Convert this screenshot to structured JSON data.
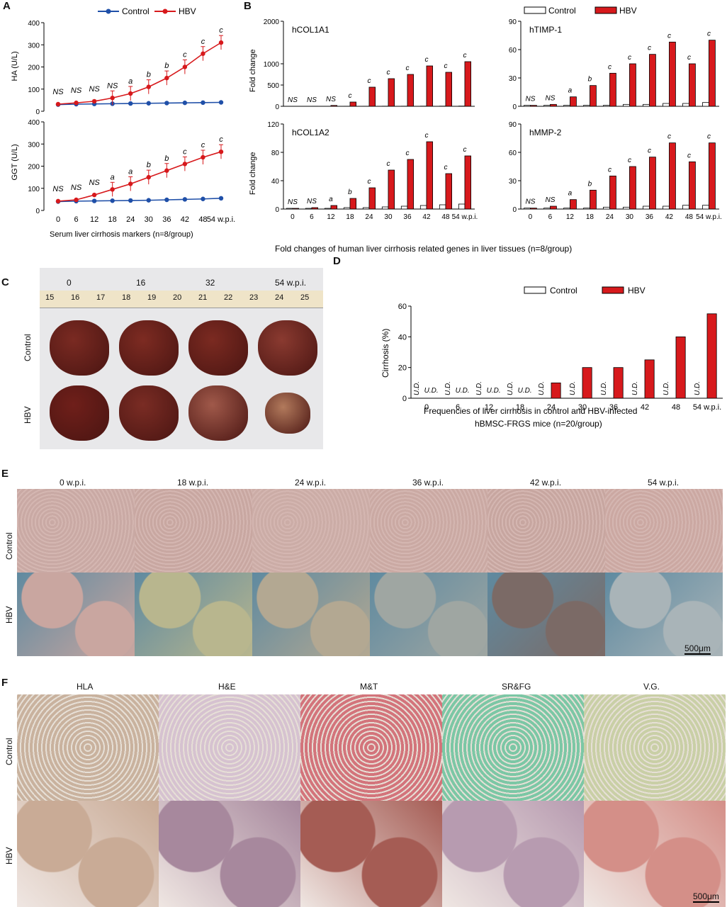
{
  "colors": {
    "control": "#1f4fa8",
    "hbv": "#d7191c",
    "bar_hbv": "#d7191c",
    "bar_control": "#ffffff"
  },
  "panelA": {
    "letter": "A",
    "legend": {
      "control": "Control",
      "hbv": "HBV"
    },
    "xlabel": "Serum liver cirrhosis markers (n=8/group)",
    "x_suffix": "w.p.i."
  },
  "panelB": {
    "letter": "B",
    "legend": {
      "control": "Control",
      "hbv": "HBV"
    },
    "ylabel": "Fold change",
    "xlabel": "Fold changes of human liver cirrhosis related genes in liver tissues (n=8/group)",
    "x_suffix": "w.p.i."
  },
  "panelC": {
    "letter": "C",
    "timepoints": [
      "0",
      "16",
      "32",
      "54 w.p.i."
    ],
    "ruler_numbers": [
      "15",
      "16",
      "17",
      "18",
      "19",
      "20",
      "21",
      "22",
      "23",
      "24",
      "25"
    ],
    "rows": [
      "Control",
      "HBV"
    ]
  },
  "panelD": {
    "letter": "D",
    "legend": {
      "control": "Control",
      "hbv": "HBV"
    },
    "ylabel": "Cirrhosis (%)",
    "xlabel_line1": "Frequencies of liver cirrhosis in control and HBV-infected",
    "xlabel_line2": "hBMSC-FRGS mice (n=20/group)",
    "ud_label": "U.D.",
    "x_suffix": "w.p.i."
  },
  "panelE": {
    "letter": "E",
    "timepoints": [
      "0 w.p.i.",
      "18 w.p.i.",
      "24 w.p.i.",
      "36 w.p.i.",
      "42 w.p.i.",
      "54 w.p.i."
    ],
    "rows": [
      "Control",
      "HBV"
    ],
    "scale": "500μm"
  },
  "panelF": {
    "letter": "F",
    "stains": [
      "HLA",
      "H&E",
      "M&T",
      "SR&FG",
      "V.G."
    ],
    "rows": [
      "Control",
      "HBV"
    ],
    "scale": "500μm"
  },
  "chart_data": [
    {
      "id": "A_top",
      "type": "line",
      "ylabel": "HA (U/L)",
      "x": [
        "0",
        "6",
        "12",
        "18",
        "24",
        "30",
        "36",
        "42",
        "48",
        "54"
      ],
      "ylim": [
        0,
        400
      ],
      "series": [
        {
          "name": "Control",
          "values": [
            30,
            32,
            33,
            34,
            35,
            36,
            37,
            38,
            39,
            40
          ]
        },
        {
          "name": "HBV",
          "values": [
            32,
            38,
            45,
            60,
            80,
            110,
            150,
            200,
            260,
            310
          ]
        }
      ],
      "annotations": [
        "NS",
        "NS",
        "NS",
        "NS",
        "a",
        "b",
        "b",
        "c",
        "c",
        "c"
      ]
    },
    {
      "id": "A_bottom",
      "type": "line",
      "ylabel": "GGT (U/L)",
      "x": [
        "0",
        "6",
        "12",
        "18",
        "24",
        "30",
        "36",
        "42",
        "48",
        "54"
      ],
      "ylim": [
        0,
        400
      ],
      "series": [
        {
          "name": "Control",
          "values": [
            40,
            42,
            43,
            44,
            45,
            46,
            48,
            50,
            52,
            55
          ]
        },
        {
          "name": "HBV",
          "values": [
            42,
            48,
            70,
            95,
            120,
            150,
            180,
            210,
            240,
            265
          ]
        }
      ],
      "annotations": [
        "NS",
        "NS",
        "NS",
        "a",
        "a",
        "b",
        "b",
        "c",
        "c",
        "c"
      ]
    },
    {
      "id": "B_hCOL1A1",
      "type": "bar",
      "title": "hCOL1A1",
      "ylim": [
        0,
        2000
      ],
      "categories": [
        "0",
        "6",
        "12",
        "18",
        "24",
        "30",
        "36",
        "42",
        "48",
        "54"
      ],
      "series": [
        {
          "name": "Control",
          "values": [
            1,
            1,
            1,
            2,
            2,
            3,
            3,
            4,
            4,
            5
          ]
        },
        {
          "name": "HBV",
          "values": [
            1,
            2,
            20,
            100,
            450,
            650,
            750,
            950,
            800,
            1050
          ]
        }
      ],
      "annotations": [
        "NS",
        "NS",
        "NS",
        "c",
        "c",
        "c",
        "c",
        "c",
        "c",
        "c"
      ]
    },
    {
      "id": "B_hTIMP1",
      "type": "bar",
      "title": "hTIMP-1",
      "ylim": [
        0,
        90
      ],
      "categories": [
        "0",
        "6",
        "12",
        "18",
        "24",
        "30",
        "36",
        "42",
        "48",
        "54"
      ],
      "series": [
        {
          "name": "Control",
          "values": [
            1,
            1,
            1,
            1,
            1,
            2,
            2,
            3,
            3,
            4
          ]
        },
        {
          "name": "HBV",
          "values": [
            1,
            2,
            10,
            22,
            35,
            45,
            55,
            68,
            45,
            70
          ]
        }
      ],
      "annotations": [
        "NS",
        "NS",
        "a",
        "b",
        "c",
        "c",
        "c",
        "c",
        "c",
        "c"
      ]
    },
    {
      "id": "B_hCOL1A2",
      "type": "bar",
      "title": "hCOL1A2",
      "ylim": [
        0,
        120
      ],
      "categories": [
        "0",
        "6",
        "12",
        "18",
        "24",
        "30",
        "36",
        "42",
        "48",
        "54"
      ],
      "series": [
        {
          "name": "Control",
          "values": [
            1,
            1,
            1,
            2,
            2,
            3,
            4,
            5,
            6,
            7
          ]
        },
        {
          "name": "HBV",
          "values": [
            1,
            2,
            5,
            15,
            30,
            55,
            70,
            95,
            50,
            75
          ]
        }
      ],
      "annotations": [
        "NS",
        "NS",
        "a",
        "b",
        "c",
        "c",
        "c",
        "c",
        "c",
        "c"
      ]
    },
    {
      "id": "B_hMMP2",
      "type": "bar",
      "title": "hMMP-2",
      "ylim": [
        0,
        90
      ],
      "categories": [
        "0",
        "6",
        "12",
        "18",
        "24",
        "30",
        "36",
        "42",
        "48",
        "54"
      ],
      "series": [
        {
          "name": "Control",
          "values": [
            1,
            1,
            1,
            1,
            2,
            2,
            3,
            3,
            4,
            4
          ]
        },
        {
          "name": "HBV",
          "values": [
            1,
            3,
            10,
            20,
            35,
            45,
            55,
            70,
            50,
            70
          ]
        }
      ],
      "annotations": [
        "NS",
        "NS",
        "a",
        "b",
        "c",
        "c",
        "c",
        "c",
        "c",
        "c"
      ]
    },
    {
      "id": "D",
      "type": "bar",
      "ylabel": "Cirrhosis (%)",
      "ylim": [
        0,
        60
      ],
      "categories": [
        "0",
        "6",
        "12",
        "18",
        "24",
        "30",
        "36",
        "42",
        "48",
        "54"
      ],
      "series": [
        {
          "name": "Control",
          "values": [
            0,
            0,
            0,
            0,
            0,
            0,
            0,
            0,
            0,
            0
          ]
        },
        {
          "name": "HBV",
          "values": [
            0,
            0,
            0,
            0,
            10,
            20,
            20,
            25,
            40,
            55
          ]
        }
      ]
    }
  ]
}
